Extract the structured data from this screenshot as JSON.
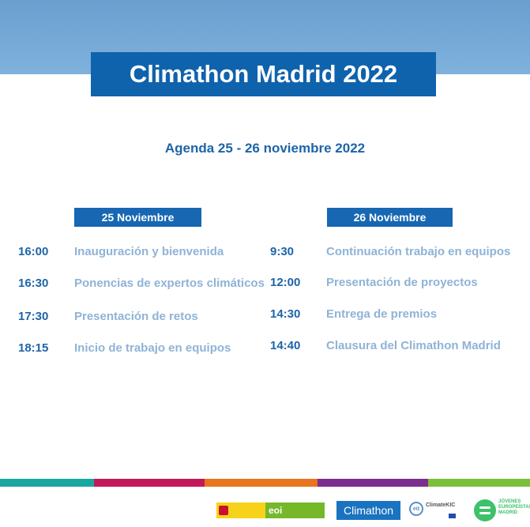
{
  "title": "Climathon Madrid 2022",
  "subtitle": "Agenda 25 - 26 noviembre 2022",
  "days": [
    {
      "label": "25 Noviembre",
      "items": [
        {
          "time": "16:00",
          "event": "Inauguración y bienvenida"
        },
        {
          "time": "16:30",
          "event": "Ponencias de expertos climáticos"
        },
        {
          "time": "17:30",
          "event": "Presentación de retos"
        },
        {
          "time": "18:15",
          "event": "Inicio de trabajo en equipos"
        }
      ]
    },
    {
      "label": "26 Noviembre",
      "items": [
        {
          "time": "9:30",
          "event": "Continuación trabajo en equipos"
        },
        {
          "time": "12:00",
          "event": "Presentación de proyectos"
        },
        {
          "time": "14:30",
          "event": "Entrega de premios"
        },
        {
          "time": "14:40",
          "event": "Clausura del Climathon Madrid"
        }
      ]
    }
  ],
  "stripe_colors": [
    "#18a7a0",
    "#c2185b",
    "#e8741e",
    "#7b2d90",
    "#7bbf3c"
  ],
  "logos": {
    "eoi": "eoi",
    "climathon": "Climathon",
    "climate_kic": "ClimateKIC",
    "jem": "JÓVENES EUROPEÍSTAS MADRID"
  }
}
